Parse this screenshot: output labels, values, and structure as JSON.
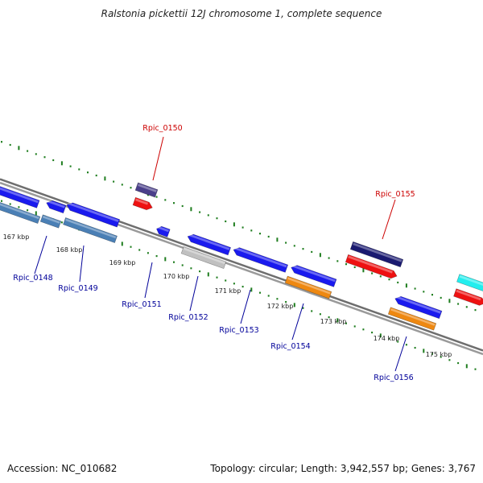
{
  "title": "Ralstonia pickettii 12J chromosome 1, complete sequence",
  "footer": {
    "accession": "Accession: NC_010682",
    "summary": "Topology: circular; Length: 3,942,557 bp; Genes: 3,767"
  },
  "colors": {
    "backbone": "#8a8a8a",
    "tick": "#1e7d1e",
    "label_forward": "#cc0000",
    "label_reverse": "#000099",
    "blue": "#1a1aee",
    "steelblue": "#4a7fb5",
    "red": "#ee1111",
    "navy": "#1a1a70",
    "slate": "#4a3f8a",
    "orange": "#ee8811",
    "gray": "#c0c0c0",
    "cyan": "#22eeee"
  },
  "scale": {
    "labels": [
      "167 kbp",
      "168 kbp",
      "169 kbp",
      "170 kbp",
      "171 kbp",
      "172 kbp",
      "173 kbp",
      "174 kbp",
      "175 kbp"
    ]
  },
  "genes": [
    {
      "label": "Rpic_0148",
      "color": "blue",
      "strand": "reverse"
    },
    {
      "label": "Rpic_0149",
      "color": "blue",
      "strand": "reverse"
    },
    {
      "label": "Rpic_0150",
      "color": "slate",
      "strand": "forward"
    },
    {
      "label": "Rpic_0151",
      "color": "blue",
      "strand": "reverse"
    },
    {
      "label": "Rpic_0152",
      "color": "blue",
      "strand": "reverse"
    },
    {
      "label": "Rpic_0153",
      "color": "blue",
      "strand": "reverse"
    },
    {
      "label": "Rpic_0154",
      "color": "blue",
      "strand": "reverse"
    },
    {
      "label": "Rpic_0155",
      "color": "navy",
      "strand": "forward"
    },
    {
      "label": "Rpic_0156",
      "color": "blue",
      "strand": "reverse"
    }
  ]
}
